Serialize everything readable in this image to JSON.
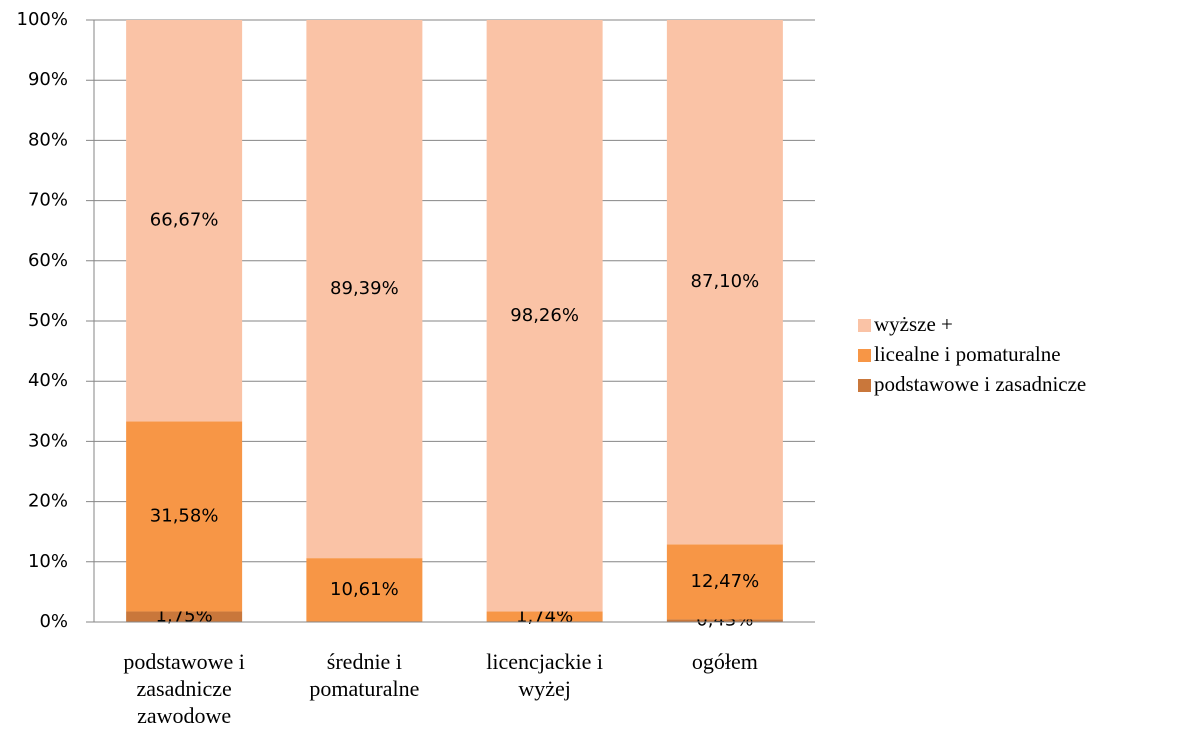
{
  "chart_data": {
    "type": "stacked-bar",
    "categories": [
      "podstawowe i zasadnicze zawodowe",
      "średnie i pomaturalne",
      "licencjackie i wyżej",
      "ogółem"
    ],
    "series": [
      {
        "name": "podstawowe i zasadnicze",
        "color": "#c9773b",
        "values": [
          1.75,
          null,
          null,
          0.43
        ],
        "value_labels": [
          "1,75%",
          null,
          null,
          "0,43%"
        ]
      },
      {
        "name": "licealne i pomaturalne",
        "color": "#f79646",
        "values": [
          31.58,
          10.61,
          1.74,
          12.47
        ],
        "value_labels": [
          "31,58%",
          "10,61%",
          "1,74%",
          "12,47%"
        ]
      },
      {
        "name": "wyższe +",
        "color": "#fac3a6",
        "values": [
          66.67,
          89.39,
          98.26,
          87.1
        ],
        "value_labels": [
          "66,67%",
          "89,39%",
          "98,26%",
          "87,10%"
        ]
      }
    ],
    "ylim": [
      0,
      100
    ],
    "yticks": [
      {
        "value": 0,
        "label": "0%"
      },
      {
        "value": 10,
        "label": "10%"
      },
      {
        "value": 20,
        "label": "20%"
      },
      {
        "value": 30,
        "label": "30%"
      },
      {
        "value": 40,
        "label": "40%"
      },
      {
        "value": 50,
        "label": "50%"
      },
      {
        "value": 60,
        "label": "60%"
      },
      {
        "value": 70,
        "label": "70%"
      },
      {
        "value": 80,
        "label": "80%"
      },
      {
        "value": 90,
        "label": "90%"
      },
      {
        "value": 100,
        "label": "100%"
      }
    ],
    "grid": true,
    "legend": "right"
  }
}
